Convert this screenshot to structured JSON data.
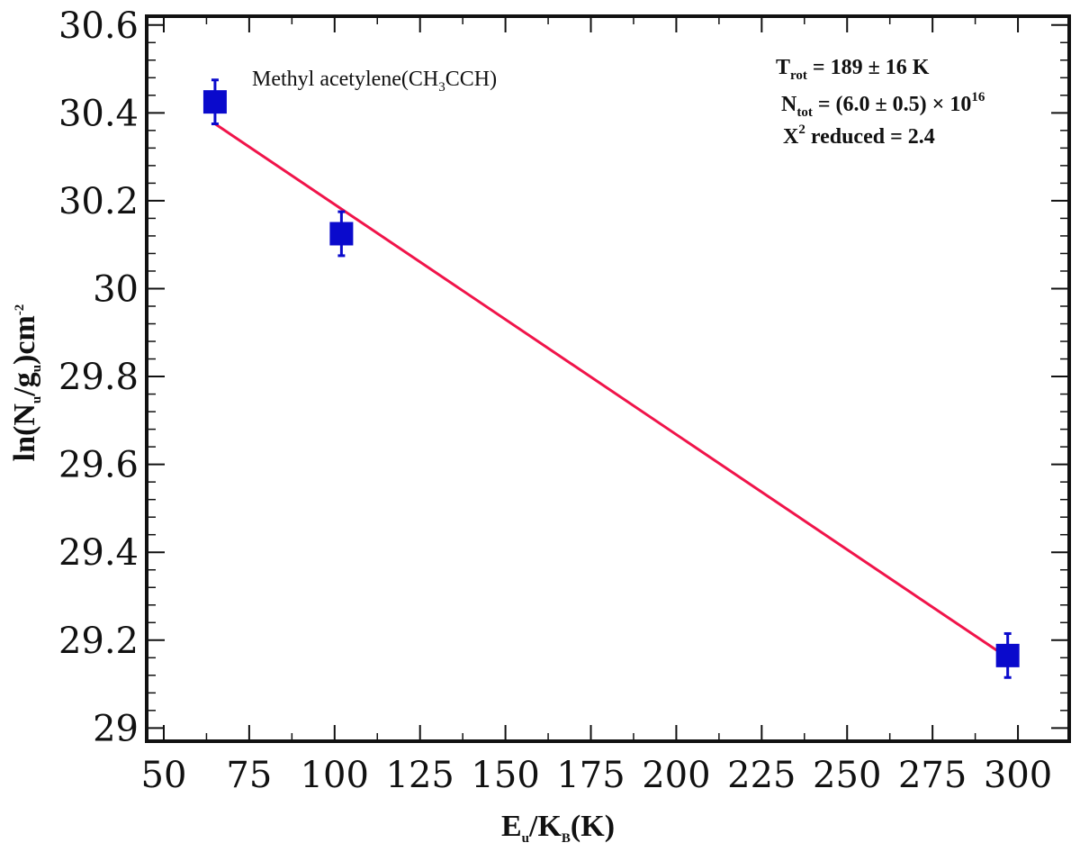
{
  "chart_data": {
    "type": "scatter",
    "series_label": {
      "main": "Methyl acetylene(CH",
      "sub": "3",
      "tail": "CCH)"
    },
    "xlabel": {
      "main": "E",
      "sub1": "u",
      "mid": "/K",
      "sub2": "B",
      "tail": "(K)"
    },
    "ylabel": {
      "p1": "ln(N",
      "s1": "u",
      "p2": "/g",
      "s2": "u",
      "p3": ")cm",
      "sup": "-2"
    },
    "xlim": [
      45,
      315
    ],
    "ylim": [
      28.97,
      30.62
    ],
    "xticks": [
      50,
      75,
      100,
      125,
      150,
      175,
      200,
      225,
      250,
      275,
      300
    ],
    "yticks": [
      29,
      29.2,
      29.4,
      29.6,
      29.8,
      30,
      30.2,
      30.4,
      30.6
    ],
    "xtick_labels": [
      "50",
      "75",
      "100",
      "125",
      "150",
      "175",
      "200",
      "225",
      "250",
      "275",
      "300"
    ],
    "ytick_labels": [
      "29",
      "29.2",
      "29.4",
      "29.6",
      "29.8",
      "30",
      "30.2",
      "30.4",
      "30.6"
    ],
    "points": [
      {
        "x": 65,
        "y": 30.425,
        "err": 0.05
      },
      {
        "x": 102,
        "y": 30.125,
        "err": 0.05
      },
      {
        "x": 297,
        "y": 29.165,
        "err": 0.05
      }
    ],
    "fit_line": {
      "x": [
        65,
        297
      ],
      "y": [
        30.375,
        29.16
      ]
    },
    "annotations": {
      "trot": {
        "main": "T",
        "sub": "rot",
        "tail": " =  189 ± 16  K"
      },
      "ntot": {
        "main": "N",
        "sub": "tot",
        "tail": " = (6.0 ± 0.5) × 10",
        "sup": "16"
      },
      "chi": {
        "main": "X",
        "sup": "2",
        "tail": " reduced = 2.4"
      }
    },
    "colors": {
      "marker": "#0a0acc",
      "fit": "#f0144a",
      "axes": "#111111"
    },
    "grid": false
  }
}
